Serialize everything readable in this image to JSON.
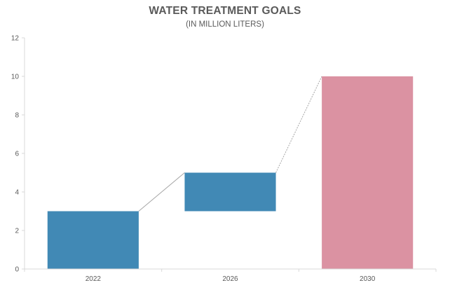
{
  "chart_data": {
    "type": "bar",
    "subtype": "waterfall",
    "title": "WATER TREATMENT GOALS",
    "subtitle": "(IN MILLION LITERS)",
    "xlabel": "",
    "ylabel": "",
    "categories": [
      "2022",
      "2026",
      "2030"
    ],
    "bars": [
      {
        "category": "2022",
        "start": 0,
        "end": 3,
        "kind": "base"
      },
      {
        "category": "2026",
        "start": 3,
        "end": 5,
        "kind": "increase"
      },
      {
        "category": "2030",
        "start": 0,
        "end": 10,
        "kind": "total"
      }
    ],
    "ylim": [
      0,
      12
    ],
    "yticks": [
      0,
      2,
      4,
      6,
      8,
      10,
      12
    ],
    "grid": false,
    "legend": "none",
    "colors": {
      "base": "#4189b5",
      "increase": "#4189b5",
      "total": "#db92a2",
      "connector": "#a6a6a6",
      "axis": "#d9d9d9",
      "text": "#595959"
    }
  }
}
